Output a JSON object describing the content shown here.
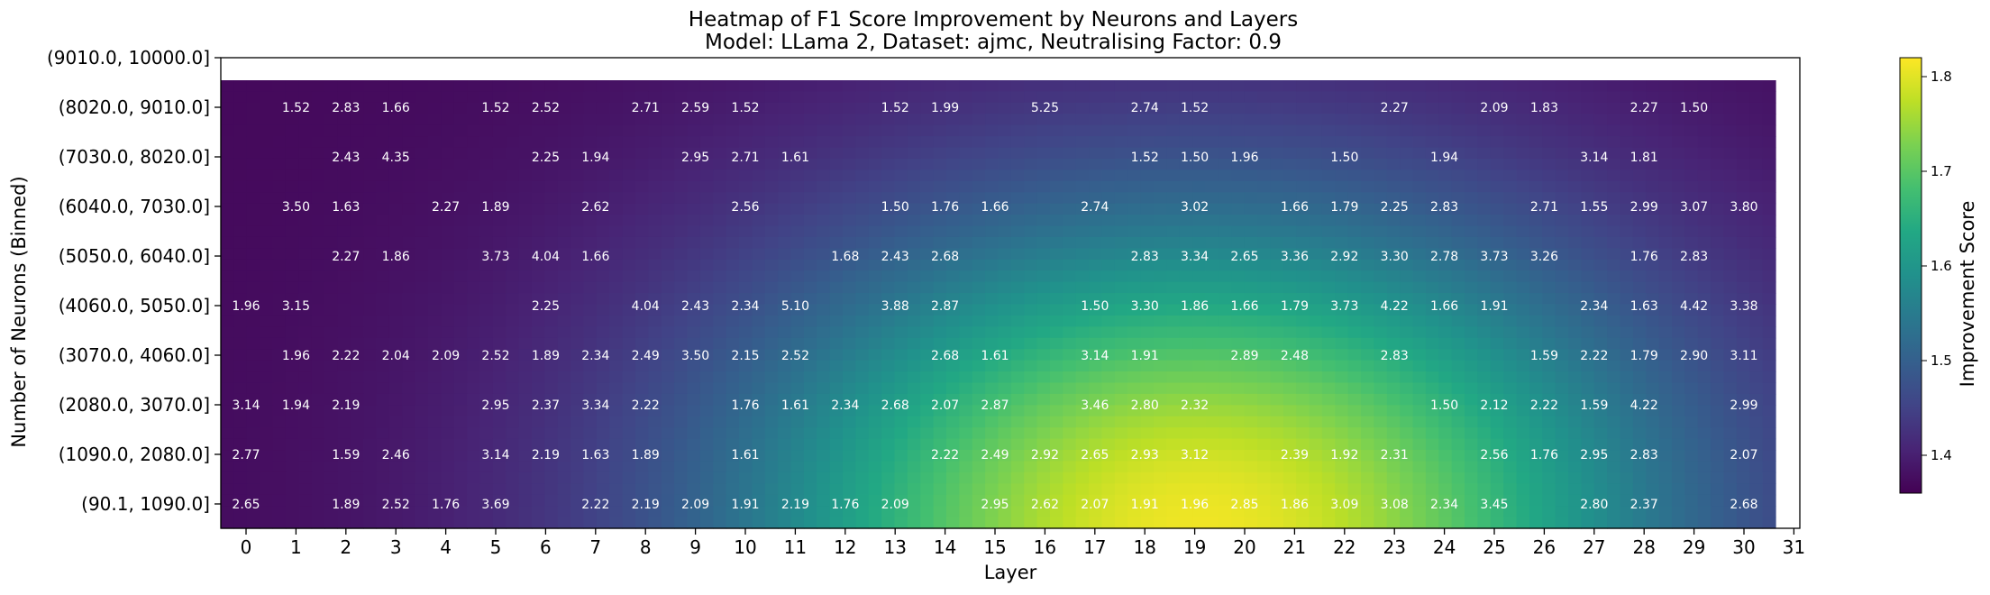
{
  "chart_data": {
    "type": "heatmap",
    "title": "Heatmap of F1 Score Improvement by Neurons and Layers",
    "subtitle": "Model: LLama 2, Dataset: ajmc, Neutralising Factor: 0.9",
    "xlabel": "Layer",
    "ylabel": "Number of Neurons (Binned)",
    "colorbar_label": "Improvement Score",
    "colormap": "viridis",
    "x_ticks": [
      "0",
      "1",
      "2",
      "3",
      "4",
      "5",
      "6",
      "7",
      "8",
      "9",
      "10",
      "11",
      "12",
      "13",
      "14",
      "15",
      "16",
      "17",
      "18",
      "19",
      "20",
      "21",
      "22",
      "23",
      "24",
      "25",
      "26",
      "27",
      "28",
      "29",
      "30",
      "31"
    ],
    "y_categories": [
      "(9010.0, 10000.0]",
      "(8020.0, 9010.0]",
      "(7030.0, 8020.0]",
      "(6040.0, 7030.0]",
      "(5050.0, 6040.0]",
      "(4060.0, 5050.0]",
      "(3070.0, 4060.0]",
      "(2080.0, 3070.0]",
      "(1090.0, 2080.0]",
      "(90.1, 1090.0]"
    ],
    "colorbar_range": [
      1.36,
      1.82
    ],
    "colorbar_ticks": [
      "1.4",
      "1.5",
      "1.6",
      "1.7",
      "1.8"
    ],
    "colors": {
      "viridis_stops": [
        "#440154",
        "#482475",
        "#414487",
        "#355f8d",
        "#2a788e",
        "#21918c",
        "#22a884",
        "#44bf70",
        "#7ad151",
        "#bddf26",
        "#fde725"
      ]
    },
    "annotations": [
      [
        "",
        "",
        "",
        "",
        "",
        "",
        "",
        "",
        "",
        "",
        "",
        "",
        "",
        "",
        "",
        "",
        "",
        "",
        "",
        "",
        "",
        "",
        "",
        "",
        "",
        "",
        "",
        "",
        "",
        "",
        "",
        ""
      ],
      [
        "",
        "1.52",
        "2.83",
        "1.66",
        "",
        "1.52",
        "2.52",
        "",
        "2.71",
        "2.59",
        "1.52",
        "",
        "",
        "1.52",
        "1.99",
        "",
        "5.25",
        "",
        "2.74",
        "1.52",
        "",
        "",
        "",
        "2.27",
        "",
        "2.09",
        "1.83",
        "",
        "2.27",
        "1.50",
        "",
        ""
      ],
      [
        "",
        "",
        "2.43",
        "4.35",
        "",
        "",
        "2.25",
        "1.94",
        "",
        "2.95",
        "2.71",
        "1.61",
        "",
        "",
        "",
        "",
        "",
        "",
        "1.52",
        "1.50",
        "1.96",
        "",
        "1.50",
        "",
        "1.94",
        "",
        "",
        "3.14",
        "1.81",
        "",
        "",
        ""
      ],
      [
        "",
        "3.50",
        "1.63",
        "",
        "2.27",
        "1.89",
        "",
        "2.62",
        "",
        "",
        "2.56",
        "",
        "",
        "1.50",
        "1.76",
        "1.66",
        "",
        "2.74",
        "",
        "3.02",
        "",
        "1.66",
        "1.79",
        "2.25",
        "2.83",
        "",
        "2.71",
        "1.55",
        "2.99",
        "3.07",
        "3.80",
        ""
      ],
      [
        "",
        "",
        "2.27",
        "1.86",
        "",
        "3.73",
        "4.04",
        "1.66",
        "",
        "",
        "",
        "",
        "1.68",
        "2.43",
        "2.68",
        "",
        "",
        "",
        "2.83",
        "3.34",
        "2.65",
        "3.36",
        "2.92",
        "3.30",
        "2.78",
        "3.73",
        "3.26",
        "",
        "1.76",
        "2.83",
        "",
        ""
      ],
      [
        "1.96",
        "3.15",
        "",
        "",
        "",
        "",
        "2.25",
        "",
        "4.04",
        "2.43",
        "2.34",
        "5.10",
        "",
        "3.88",
        "2.87",
        "",
        "",
        "1.50",
        "3.30",
        "1.86",
        "1.66",
        "1.79",
        "3.73",
        "4.22",
        "1.66",
        "1.91",
        "",
        "2.34",
        "1.63",
        "4.42",
        "3.38",
        ""
      ],
      [
        "",
        "1.96",
        "2.22",
        "2.04",
        "2.09",
        "2.52",
        "1.89",
        "2.34",
        "2.49",
        "3.50",
        "2.15",
        "2.52",
        "",
        "",
        "2.68",
        "1.61",
        "",
        "3.14",
        "1.91",
        "",
        "2.89",
        "2.48",
        "",
        "2.83",
        "",
        "",
        "1.59",
        "2.22",
        "1.79",
        "2.90",
        "3.11",
        ""
      ],
      [
        "3.14",
        "1.94",
        "2.19",
        "",
        "",
        "2.95",
        "2.37",
        "3.34",
        "2.22",
        "",
        "1.76",
        "1.61",
        "2.34",
        "2.68",
        "2.07",
        "2.87",
        "",
        "3.46",
        "2.80",
        "2.32",
        "",
        "",
        "",
        "",
        "1.50",
        "2.12",
        "2.22",
        "1.59",
        "4.22",
        "",
        "2.99",
        ""
      ],
      [
        "2.77",
        "",
        "1.59",
        "2.46",
        "",
        "3.14",
        "2.19",
        "1.63",
        "1.89",
        "",
        "1.61",
        "",
        "",
        "",
        "2.22",
        "2.49",
        "2.92",
        "2.65",
        "2.93",
        "3.12",
        "",
        "2.39",
        "1.92",
        "2.31",
        "",
        "2.56",
        "1.76",
        "2.95",
        "2.83",
        "",
        "2.07",
        ""
      ],
      [
        "2.65",
        "",
        "1.89",
        "2.52",
        "1.76",
        "3.69",
        "",
        "2.22",
        "2.19",
        "2.09",
        "1.91",
        "2.19",
        "1.76",
        "2.09",
        "",
        "2.95",
        "2.62",
        "2.07",
        "1.91",
        "1.96",
        "2.85",
        "1.86",
        "3.09",
        "3.08",
        "2.34",
        "3.45",
        "",
        "2.80",
        "2.37",
        "",
        "2.68",
        ""
      ]
    ]
  }
}
